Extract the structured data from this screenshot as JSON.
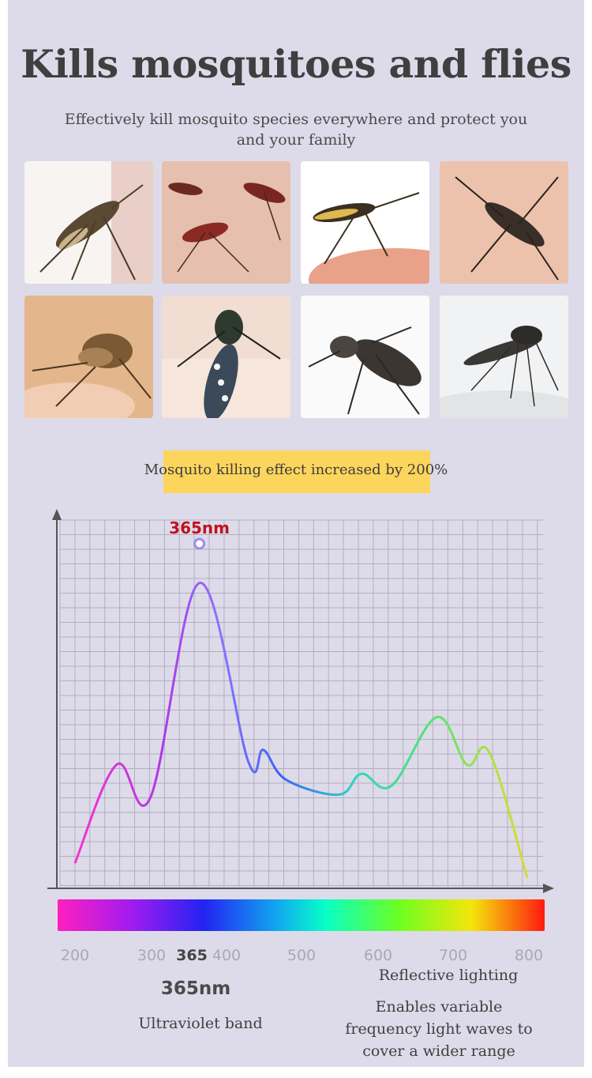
{
  "header": {
    "title": "Kills mosquitoes and flies",
    "subtitle": "Effectively kill mosquito species everywhere and protect you and your family"
  },
  "gallery": {
    "photos": [
      "mosquito-photo",
      "mosquito-photo",
      "mosquito-photo",
      "mosquito-photo",
      "mosquito-photo",
      "mosquito-photo",
      "mosquito-photo",
      "mosquito-photo"
    ]
  },
  "badge": {
    "text": "Mosquito killing effect increased by 200%"
  },
  "chart_data": {
    "type": "line",
    "peak_label": "365nm",
    "x_ticks": [
      "200",
      "300",
      "365",
      "400",
      "500",
      "600",
      "700",
      "800"
    ],
    "highlight_tick": "365",
    "x": [
      200,
      255,
      300,
      365,
      430,
      450,
      480,
      550,
      580,
      620,
      680,
      720,
      750,
      800
    ],
    "y": [
      5,
      38,
      27,
      99,
      39,
      43,
      33,
      28,
      35,
      31,
      54,
      38,
      42,
      0
    ],
    "colors": {
      "spectrum_start": "#ff1fbf",
      "spectrum_end": "#ff1a10",
      "peak_label": "#c1121f"
    }
  },
  "footer": {
    "left_heading": "365nm",
    "left_caption": "Ultraviolet band",
    "right_heading": "Reflective lighting",
    "right_caption": "Enables variable frequency light waves to cover a wider range"
  }
}
